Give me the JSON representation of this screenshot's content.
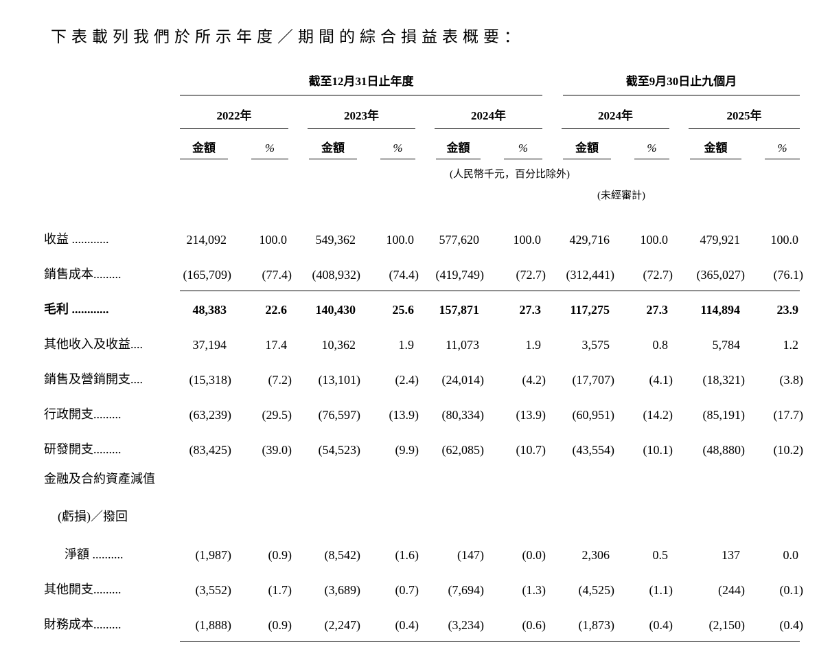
{
  "page": {
    "title": "下表載列我們於所示年度／期間的綜合損益表概要："
  },
  "table": {
    "column_groups": [
      {
        "label": "截至12月31日止年度",
        "years": [
          "2022年",
          "2023年",
          "2024年"
        ]
      },
      {
        "label": "截至9月30日止九個月",
        "years": [
          "2024年",
          "2025年"
        ]
      }
    ],
    "subheaders": {
      "amount": "金額",
      "percent": "%"
    },
    "notes": {
      "currency": "(人民幣千元，百分比除外)",
      "unaudited": "(未經審計)"
    },
    "rows": [
      {
        "label": "收益 ............",
        "values": [
          "214,092",
          "100.0",
          "549,362",
          "100.0",
          "577,620",
          "100.0",
          "429,716",
          "100.0",
          "479,921",
          "100.0"
        ]
      },
      {
        "label": "銷售成本.........",
        "rule_below": true,
        "values": [
          "(165,709)",
          "(77.4)",
          "(408,932)",
          "(74.4)",
          "(419,749)",
          "(72.7)",
          "(312,441)",
          "(72.7)",
          "(365,027)",
          "(76.1)"
        ]
      },
      {
        "label": "毛利 ............",
        "bold": true,
        "values": [
          "48,383",
          "22.6",
          "140,430",
          "25.6",
          "157,871",
          "27.3",
          "117,275",
          "27.3",
          "114,894",
          "23.9"
        ]
      },
      {
        "label": "其他收入及收益....",
        "values": [
          "37,194",
          "17.4",
          "10,362",
          "1.9",
          "11,073",
          "1.9",
          "3,575",
          "0.8",
          "5,784",
          "1.2"
        ]
      },
      {
        "label": "銷售及營銷開支....",
        "values": [
          "(15,318)",
          "(7.2)",
          "(13,101)",
          "(2.4)",
          "(24,014)",
          "(4.2)",
          "(17,707)",
          "(4.1)",
          "(18,321)",
          "(3.8)"
        ]
      },
      {
        "label": "行政開支.........",
        "values": [
          "(63,239)",
          "(29.5)",
          "(76,597)",
          "(13.9)",
          "(80,334)",
          "(13.9)",
          "(60,951)",
          "(14.2)",
          "(85,191)",
          "(17.7)"
        ]
      },
      {
        "label": "研發開支.........",
        "values": [
          "(83,425)",
          "(39.0)",
          "(54,523)",
          "(9.9)",
          "(62,085)",
          "(10.7)",
          "(43,554)",
          "(10.1)",
          "(48,880)",
          "(10.2)"
        ]
      },
      {
        "label_lines": [
          "金融及合約資產減值",
          "(虧損)／撥回",
          "淨額 .........."
        ],
        "values": [
          "(1,987)",
          "(0.9)",
          "(8,542)",
          "(1.6)",
          "(147)",
          "(0.0)",
          "2,306",
          "0.5",
          "137",
          "0.0"
        ]
      },
      {
        "label": "其他開支.........",
        "values": [
          "(3,552)",
          "(1.7)",
          "(3,689)",
          "(0.7)",
          "(7,694)",
          "(1.3)",
          "(4,525)",
          "(1.1)",
          "(244)",
          "(0.1)"
        ]
      },
      {
        "label": "財務成本.........",
        "rule_below": true,
        "values": [
          "(1,888)",
          "(0.9)",
          "(2,247)",
          "(0.4)",
          "(3,234)",
          "(0.6)",
          "(1,873)",
          "(0.4)",
          "(2,150)",
          "(0.4)"
        ]
      }
    ]
  }
}
